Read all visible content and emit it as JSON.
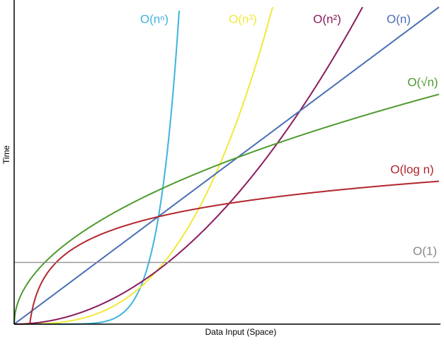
{
  "chart_data": {
    "type": "line",
    "x_label": "Data Input (Space)",
    "y_label": "Time",
    "series": [
      {
        "name": "O(nⁿ)",
        "color": "#3fb3dc"
      },
      {
        "name": "O(n³)",
        "color": "#f2e93a"
      },
      {
        "name": "O(n²)",
        "color": "#8a1b5e"
      },
      {
        "name": "O(n)",
        "color": "#4a6fb5"
      },
      {
        "name": "O(√n)",
        "color": "#4f9a2e"
      },
      {
        "name": "O(log n)",
        "color": "#b3262e"
      },
      {
        "name": "O(1)",
        "color": "#888888"
      }
    ]
  }
}
